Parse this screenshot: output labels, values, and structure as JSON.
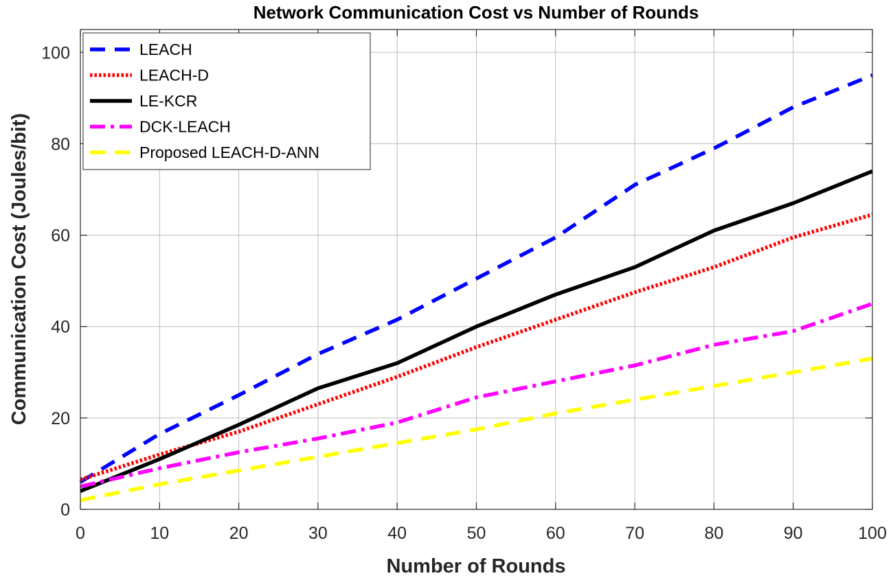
{
  "chart_data": {
    "type": "line",
    "title": "Network Communication Cost vs Number of Rounds",
    "xlabel": "Number of Rounds",
    "ylabel": "Communication Cost (Joules/bit)",
    "xlim": [
      0,
      100
    ],
    "ylim": [
      0,
      105
    ],
    "xticks": [
      0,
      10,
      20,
      30,
      40,
      50,
      60,
      70,
      80,
      90,
      100
    ],
    "yticks": [
      0,
      20,
      40,
      60,
      80,
      100
    ],
    "grid": true,
    "legend_position": "top-left",
    "x": [
      0,
      10,
      20,
      30,
      40,
      50,
      60,
      70,
      80,
      90,
      100
    ],
    "series": [
      {
        "name": "LEACH",
        "color": "#0000ff",
        "style": "dashed",
        "values": [
          6,
          16.5,
          25,
          34,
          41.5,
          50.5,
          59.5,
          71,
          79,
          88,
          95
        ]
      },
      {
        "name": "LEACH-D",
        "color": "#ff0000",
        "style": "dotted",
        "values": [
          6.5,
          12,
          17,
          23,
          29,
          35.5,
          41.5,
          47.5,
          53,
          59.5,
          64.5
        ]
      },
      {
        "name": "LE-KCR",
        "color": "#000000",
        "style": "solid",
        "values": [
          4,
          11,
          18.5,
          26.5,
          32,
          40,
          47,
          53,
          61,
          67,
          74
        ]
      },
      {
        "name": "DCK-LEACH",
        "color": "#ff00ff",
        "style": "dashdot",
        "values": [
          5,
          9,
          12.5,
          15.5,
          19,
          24.5,
          28,
          31.5,
          36,
          39,
          45
        ]
      },
      {
        "name": "Proposed LEACH-D-ANN",
        "color": "#ffff00",
        "style": "dashed",
        "values": [
          2,
          5.5,
          8.5,
          11.5,
          14.5,
          17.5,
          21,
          24,
          27,
          30,
          33
        ]
      }
    ]
  }
}
